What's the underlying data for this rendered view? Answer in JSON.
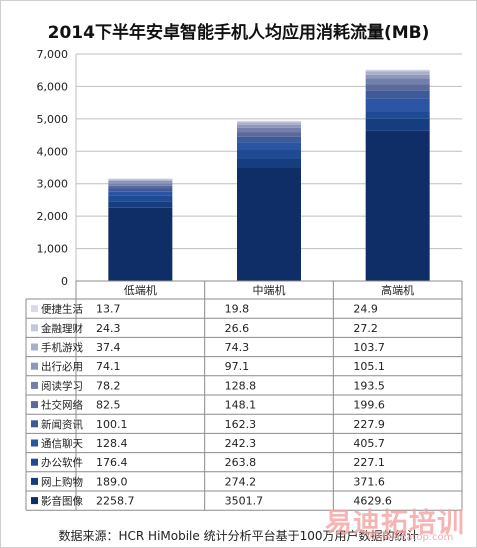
{
  "chart_data": {
    "type": "bar",
    "stacked": true,
    "title": "2014下半年安卓智能手机人均应用消耗流量(MB)",
    "categories": [
      "低端机",
      "中端机",
      "高端机"
    ],
    "ylim": [
      0,
      7000
    ],
    "yticks": [
      "0",
      "1,000",
      "2,000",
      "3,000",
      "4,000",
      "5,000",
      "6,000",
      "7,000"
    ],
    "grid": true,
    "legend": "table-left",
    "series": [
      {
        "name": "便捷生活",
        "values": [
          13.7,
          19.8,
          24.9
        ],
        "display": [
          "13.7",
          "19.8",
          "24.9"
        ],
        "color": "#d9dbe8"
      },
      {
        "name": "金融理财",
        "values": [
          24.3,
          26.6,
          27.2
        ],
        "display": [
          "24.3",
          "26.6",
          "27.2"
        ],
        "color": "#c4c8dc"
      },
      {
        "name": "手机游戏",
        "values": [
          37.4,
          74.3,
          103.7
        ],
        "display": [
          "37.4",
          "74.3",
          "103.7"
        ],
        "color": "#a9afcb"
      },
      {
        "name": "出行必用",
        "values": [
          74.1,
          97.1,
          105.1
        ],
        "display": [
          "74.1",
          "97.1",
          "105.1"
        ],
        "color": "#8e96ba"
      },
      {
        "name": "阅读学习",
        "values": [
          78.2,
          128.8,
          193.5
        ],
        "display": [
          "78.2",
          "128.8",
          "193.5"
        ],
        "color": "#7580aa"
      },
      {
        "name": "社交网络",
        "values": [
          82.5,
          148.1,
          199.6
        ],
        "display": [
          "82.5",
          "148.1",
          "199.6"
        ],
        "color": "#5a6a9c"
      },
      {
        "name": "新闻资讯",
        "values": [
          100.1,
          162.3,
          227.9
        ],
        "display": [
          "100.1",
          "162.3",
          "227.9"
        ],
        "color": "#3f5a99"
      },
      {
        "name": "通信聊天",
        "values": [
          128.4,
          242.3,
          405.7
        ],
        "display": [
          "128.4",
          "242.3",
          "405.7"
        ],
        "color": "#2b55a3"
      },
      {
        "name": "办公软件",
        "values": [
          176.4,
          263.8,
          227.1
        ],
        "display": [
          "176.4",
          "263.8",
          "227.1"
        ],
        "color": "#1f4b95"
      },
      {
        "name": "网上购物",
        "values": [
          189.0,
          274.2,
          371.6
        ],
        "display": [
          "189.0",
          "274.2",
          "371.6"
        ],
        "color": "#163d80"
      },
      {
        "name": "影音图像",
        "values": [
          2258.7,
          3501.7,
          4629.6
        ],
        "display": [
          "2258.7",
          "3501.7",
          "4629.6"
        ],
        "color": "#0f2d66"
      }
    ]
  },
  "source": "数据来源：HCR HiMobile 统计分析平台基于100万用户数据的统计",
  "watermark": {
    "text": "易迪拓培训",
    "url": "www.edatop.com"
  }
}
